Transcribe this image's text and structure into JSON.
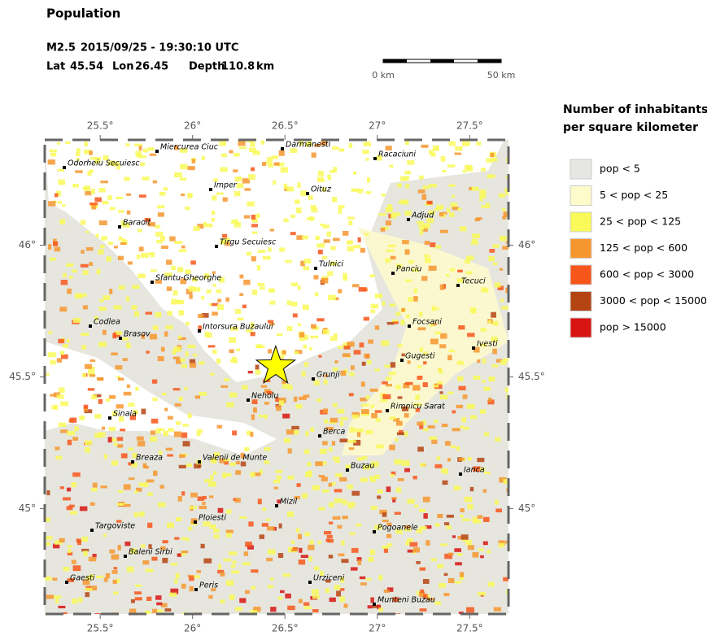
{
  "header": {
    "title": "Population",
    "magnitude": "M2.5",
    "datetime": "2015/09/25 - 19:30:10 UTC",
    "event": {
      "lat_label": "Lat",
      "lat": 45.54,
      "lon_label": "Lon",
      "lon": 26.45,
      "depth_label": "Depth",
      "depth": 110.8,
      "depth_unit": "km"
    }
  },
  "scale_bar": {
    "start_label": "0 km",
    "end_label": "50 km"
  },
  "map": {
    "lonlim": [
      25.2,
      27.71
    ],
    "latlim": [
      44.6,
      46.4
    ],
    "lonticks": [
      {
        "value": 25.5,
        "label": "25.5°"
      },
      {
        "value": 26,
        "label": "26°"
      },
      {
        "value": 26.5,
        "label": "26.5°"
      },
      {
        "value": 27,
        "label": "27°"
      },
      {
        "value": 27.5,
        "label": "27.5°"
      }
    ],
    "latticks": [
      {
        "value": 45,
        "label": "45°"
      },
      {
        "value": 45.5,
        "label": "45.5°"
      },
      {
        "value": 46,
        "label": "46°"
      }
    ],
    "cities": [
      "Odorheiu Secuiesc",
      "Miercurea Ciuc",
      "Darmanesti",
      "Racaciuni",
      "Imper",
      "Oituz",
      "Baraolt",
      "Adjud",
      "Tirgu Secuiesc",
      "Tulnici",
      "Panciu",
      "Sfantu-Gheorghe",
      "Tecuci",
      "Codlea",
      "Brasov",
      "Intorsura Buzaului",
      "Focsani",
      "Ivesti",
      "Gugesti",
      "Grunji",
      "Neholu",
      "Rimnicu Sarat",
      "Sinaia",
      "Berca",
      "Breaza",
      "Valenii de Munte",
      "Buzau",
      "Ianca",
      "Mizil",
      "Targoviste",
      "Ploiesti",
      "Pogoanele",
      "Baleni Sirbi",
      "Gaesti",
      "Urziceni",
      "Peris",
      "Munteni Buzau"
    ]
  },
  "legend": {
    "title": [
      "Number of inhabitants",
      "per square kilometer"
    ],
    "items": [
      {
        "label": "pop < 5",
        "color": "#e6e6e3"
      },
      {
        "label": "5 < pop < 25",
        "color": "#fdfbc9"
      },
      {
        "label": "25 < pop < 125",
        "color": "#f9f95a"
      },
      {
        "label": "125 < pop < 600",
        "color": "#f6962f"
      },
      {
        "label": "600 < pop < 3000",
        "color": "#f7561b"
      },
      {
        "label": "3000 < pop < 15000",
        "color": "#b54413"
      },
      {
        "label": "pop > 15000",
        "color": "#d71513"
      }
    ]
  }
}
